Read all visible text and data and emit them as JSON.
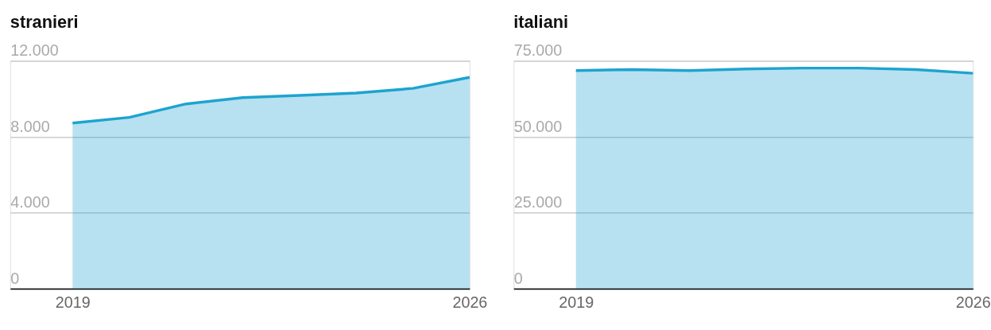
{
  "chart_data": [
    {
      "type": "area",
      "title": "stranieri",
      "x": [
        2019,
        2020,
        2021,
        2022,
        2023,
        2024,
        2025,
        2026
      ],
      "series": [
        {
          "color": "#1ea3d0",
          "values": [
            8720,
            9020,
            9730,
            10060,
            10180,
            10300,
            10550,
            11130
          ]
        }
      ],
      "xlim": [
        2017.9,
        2026
      ],
      "xticks": [
        2019,
        2026
      ],
      "ylim": [
        0,
        12000
      ],
      "yticks": [
        0,
        {
          "value": 4000,
          "label": "4.000"
        },
        {
          "value": 8000,
          "label": "8.000"
        },
        {
          "value": 12000,
          "label": "12.000"
        }
      ],
      "grid": "y",
      "legend": false
    },
    {
      "type": "area",
      "title": "italiani",
      "x": [
        2019,
        2020,
        2021,
        2022,
        2023,
        2024,
        2025,
        2026
      ],
      "series": [
        {
          "color": "#1ea3d0",
          "values": [
            71800,
            72100,
            71800,
            72300,
            72600,
            72600,
            72100,
            70900
          ]
        }
      ],
      "xlim": [
        2017.9,
        2026
      ],
      "xticks": [
        2019,
        2026
      ],
      "ylim": [
        0,
        75000
      ],
      "yticks": [
        0,
        {
          "value": 25000,
          "label": "25.000"
        },
        {
          "value": 50000,
          "label": "50.000"
        },
        {
          "value": 75000,
          "label": "75.000"
        }
      ],
      "grid": "y",
      "legend": false
    }
  ]
}
